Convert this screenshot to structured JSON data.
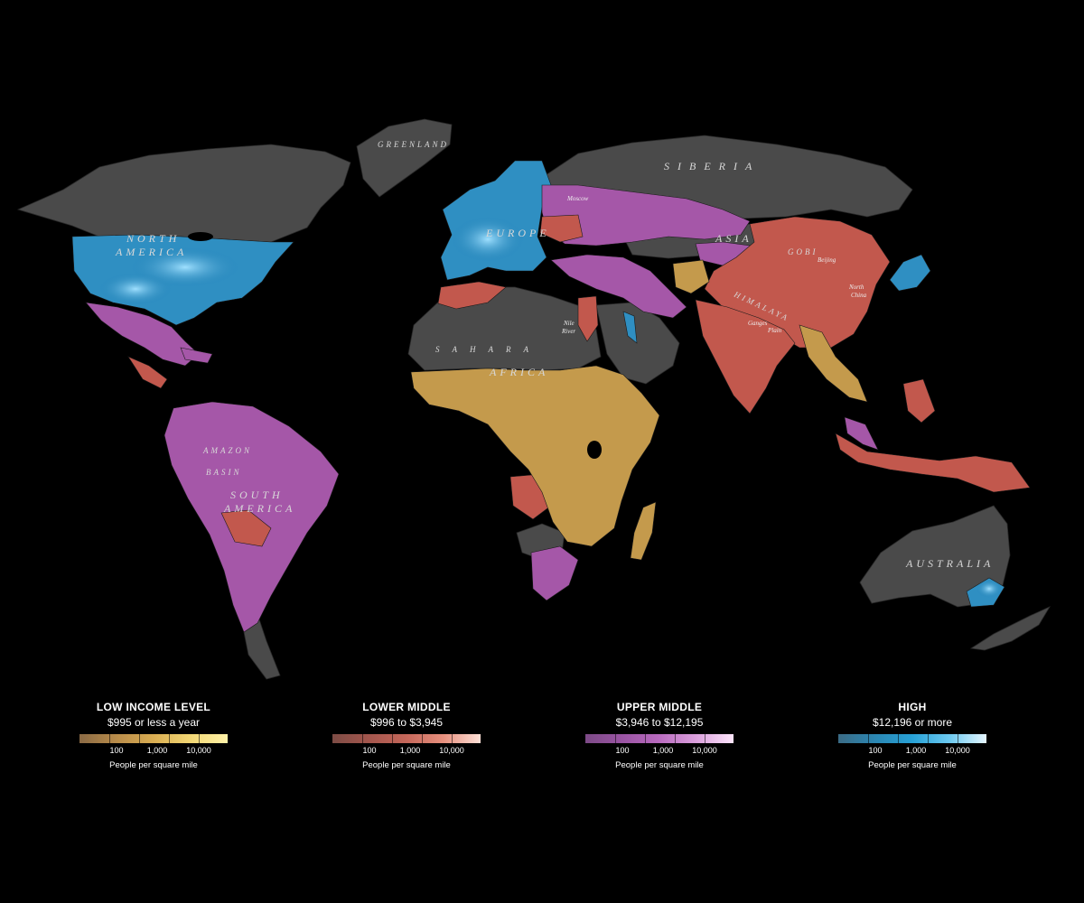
{
  "map": {
    "colors": {
      "background": "#000000",
      "land_no_data": "#4a4a4a",
      "low": "#c49a4c",
      "lower_middle": "#c2584d",
      "upper_middle": "#a557a8",
      "high": "#2f8fc2"
    },
    "labels": {
      "greenland": "GREENLAND",
      "siberia": "SIBERIA",
      "north_america_1": "NORTH",
      "north_america_2": "AMERICA",
      "europe": "EUROPE",
      "asia": "ASIA",
      "gobi": "GOBI",
      "moscow": "Moscow",
      "himalaya": "HIMALAYA",
      "beijing": "Beijing",
      "north_china_1": "North",
      "north_china_2": "China",
      "ganges_1": "Ganges",
      "ganges_2": "Plain",
      "nile_1": "Nile",
      "nile_2": "River",
      "sahara": "SAHARA",
      "africa": "AFRICA",
      "amazon": "AMAZON",
      "basin": "BASIN",
      "south_america_1": "SOUTH",
      "south_america_2": "AMERICA",
      "australia": "AUSTRALIA"
    }
  },
  "legend": [
    {
      "title": "LOW INCOME LEVEL",
      "range": "$995 or less a year",
      "gradient": [
        "#8a6a45",
        "#b98c4a",
        "#d9ad52",
        "#f2d774",
        "#fff2a8"
      ],
      "ticks": [
        "100",
        "1,000",
        "10,000"
      ],
      "unit": "People per square mile"
    },
    {
      "title": "LOWER MIDDLE",
      "range": "$996 to $3,945",
      "gradient": [
        "#7d4c45",
        "#a4564d",
        "#c5675a",
        "#e7907e",
        "#fde1d8"
      ],
      "ticks": [
        "100",
        "1,000",
        "10,000"
      ],
      "unit": "People per square mile"
    },
    {
      "title": "UPPER MIDDLE",
      "range": "$3,946 to $12,195",
      "gradient": [
        "#7c4a86",
        "#9a54a3",
        "#b96bbf",
        "#dba1dd",
        "#fde5fb"
      ],
      "ticks": [
        "100",
        "1,000",
        "10,000"
      ],
      "unit": "People per square mile"
    },
    {
      "title": "HIGH",
      "range": "$12,196 or more",
      "gradient": [
        "#3b6b85",
        "#2b87b3",
        "#27a1d6",
        "#6cc9f0",
        "#e6f7ff"
      ],
      "ticks": [
        "100",
        "1,000",
        "10,000"
      ],
      "unit": "People per square mile"
    }
  ]
}
